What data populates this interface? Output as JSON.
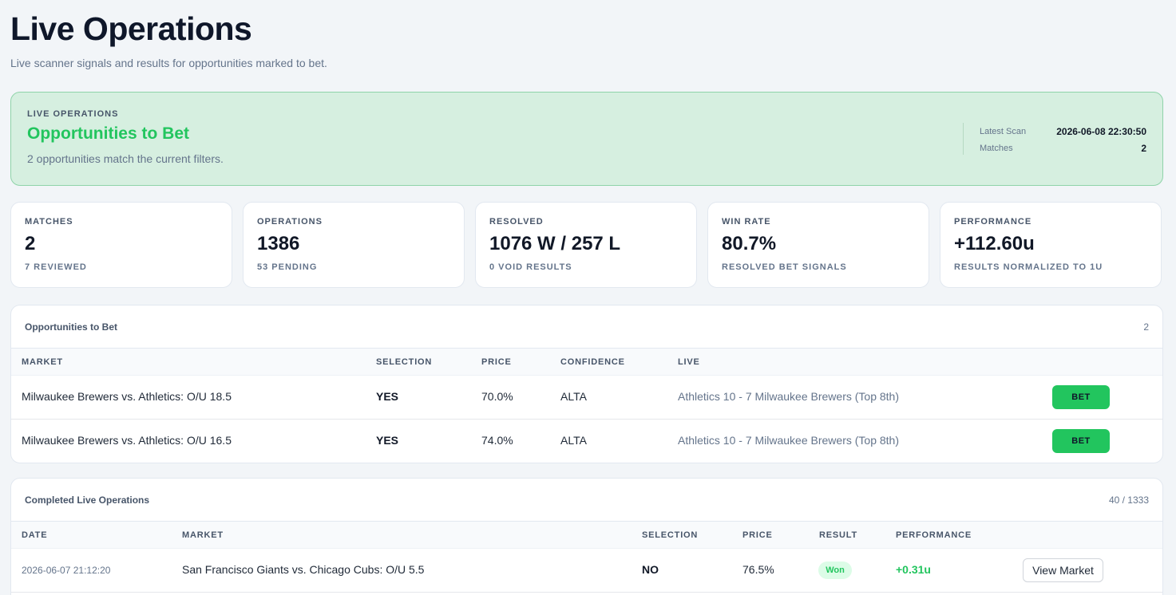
{
  "page": {
    "title": "Live Operations",
    "subtitle": "Live scanner signals and results for opportunities marked to bet."
  },
  "hero": {
    "eyebrow": "LIVE OPERATIONS",
    "title": "Opportunities to Bet",
    "description": "2 opportunities match the current filters.",
    "meta": {
      "latest_scan_label": "Latest Scan",
      "latest_scan_value": "2026-06-08 22:30:50",
      "matches_label": "Matches",
      "matches_value": "2"
    }
  },
  "stats": [
    {
      "label": "MATCHES",
      "value": "2",
      "sub": "7 REVIEWED"
    },
    {
      "label": "OPERATIONS",
      "value": "1386",
      "sub": "53 PENDING"
    },
    {
      "label": "RESOLVED",
      "value": "1076 W / 257 L",
      "sub": "0 VOID RESULTS"
    },
    {
      "label": "WIN RATE",
      "value": "80.7%",
      "sub": "RESOLVED BET SIGNALS"
    },
    {
      "label": "PERFORMANCE",
      "value": "+112.60u",
      "sub": "RESULTS NORMALIZED TO 1U"
    }
  ],
  "opportunities": {
    "title": "Opportunities to Bet",
    "count": "2",
    "columns": {
      "market": "MARKET",
      "selection": "SELECTION",
      "price": "PRICE",
      "confidence": "CONFIDENCE",
      "live": "LIVE"
    },
    "rows": [
      {
        "market": "Milwaukee Brewers vs. Athletics: O/U 18.5",
        "selection": "YES",
        "price": "70.0%",
        "confidence": "ALTA",
        "live": "Athletics 10 - 7 Milwaukee Brewers (Top 8th)",
        "action": "BET"
      },
      {
        "market": "Milwaukee Brewers vs. Athletics: O/U 16.5",
        "selection": "YES",
        "price": "74.0%",
        "confidence": "ALTA",
        "live": "Athletics 10 - 7 Milwaukee Brewers (Top 8th)",
        "action": "BET"
      }
    ]
  },
  "completed": {
    "title": "Completed Live Operations",
    "count": "40 / 1333",
    "columns": {
      "date": "DATE",
      "market": "MARKET",
      "selection": "SELECTION",
      "price": "PRICE",
      "result": "RESULT",
      "performance": "PERFORMANCE"
    },
    "rows": [
      {
        "date": "2026-06-07 21:12:20",
        "market": "San Francisco Giants vs. Chicago Cubs: O/U 5.5",
        "selection": "NO",
        "price": "76.5%",
        "result": "Won",
        "performance": "+0.31u",
        "action": "View Market"
      }
    ]
  }
}
